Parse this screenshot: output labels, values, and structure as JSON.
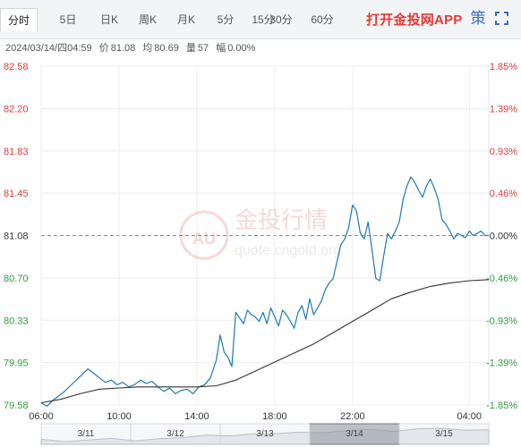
{
  "tabs": [
    {
      "label": "分时",
      "active": true
    },
    {
      "label": "5日",
      "active": false
    },
    {
      "label": "日K",
      "active": false
    },
    {
      "label": "周K",
      "active": false
    },
    {
      "label": "月K",
      "active": false
    },
    {
      "label": "5分",
      "active": false
    },
    {
      "label": "15分",
      "active": false
    },
    {
      "label": "30分",
      "active": false
    },
    {
      "label": "60分",
      "active": false
    }
  ],
  "app_link": "打开金投网APP",
  "icons": {
    "settings": "gear-icon",
    "fullscreen": "fullscreen-icon"
  },
  "quote": {
    "datetime": "2024/03/14/四04:59",
    "price_label": "价",
    "price": "81.08",
    "avg_label": "均",
    "avg": "80.69",
    "volume_label": "量",
    "volume": "57",
    "change_label": "幅",
    "change": "0.00%"
  },
  "watermark": {
    "brand": "金投行情",
    "badge": "AU",
    "url": "quote.cngold.org"
  },
  "colors": {
    "up": "#e53935",
    "down": "#2e9b3f",
    "line": "#1f78b4",
    "avg": "#333333",
    "neutral": "#333333"
  },
  "chart_data": {
    "type": "line",
    "title": "",
    "prev_close": 81.08,
    "ylim": [
      79.58,
      82.58
    ],
    "y_ticks": [
      "82.58",
      "82.20",
      "81.83",
      "81.45",
      "81.08",
      "80.70",
      "80.33",
      "79.95",
      "79.58"
    ],
    "y_pct_ticks": [
      "1.85%",
      "1.39%",
      "0.93%",
      "0.46%",
      "0.00%",
      "-0.46%",
      "-0.93%",
      "-1.39%",
      "-1.85%"
    ],
    "x_ticks": [
      "06:00",
      "10:00",
      "14:00",
      "18:00",
      "22:00",
      "04:00"
    ],
    "x_hours": [
      0,
      4,
      8,
      12,
      16,
      22
    ],
    "xlim_hours": [
      0,
      23
    ],
    "series": [
      {
        "key": "price",
        "x_hours": [
          0,
          0.3,
          0.6,
          0.9,
          1.2,
          1.5,
          1.8,
          2.1,
          2.4,
          2.7,
          3.0,
          3.3,
          3.6,
          3.9,
          4.2,
          4.5,
          4.8,
          5.1,
          5.4,
          5.7,
          6.0,
          6.3,
          6.6,
          6.9,
          7.2,
          7.5,
          7.8,
          8.1,
          8.4,
          8.7,
          9.0,
          9.2,
          9.4,
          9.6,
          9.8,
          10.0,
          10.2,
          10.4,
          10.6,
          10.8,
          11.0,
          11.2,
          11.4,
          11.6,
          11.8,
          12.0,
          12.2,
          12.4,
          12.6,
          12.8,
          13.0,
          13.2,
          13.4,
          13.6,
          13.8,
          14.0,
          14.2,
          14.4,
          14.6,
          14.8,
          15.0,
          15.2,
          15.4,
          15.6,
          15.8,
          16.0,
          16.2,
          16.4,
          16.6,
          16.8,
          17.0,
          17.2,
          17.4,
          17.6,
          17.8,
          18.0,
          18.2,
          18.4,
          18.6,
          18.8,
          19.0,
          19.2,
          19.4,
          19.6,
          19.8,
          20.0,
          20.2,
          20.4,
          20.6,
          20.8,
          21.0,
          21.2,
          21.4,
          21.6,
          21.8,
          22.0,
          22.2,
          22.4,
          22.6,
          22.8,
          23.0
        ],
        "values": [
          79.6,
          79.57,
          79.62,
          79.66,
          79.7,
          79.75,
          79.8,
          79.85,
          79.9,
          79.86,
          79.82,
          79.78,
          79.8,
          79.76,
          79.78,
          79.74,
          79.76,
          79.8,
          79.77,
          79.79,
          79.74,
          79.7,
          79.73,
          79.68,
          79.71,
          79.72,
          79.68,
          79.74,
          79.76,
          79.82,
          79.98,
          80.2,
          80.05,
          80.0,
          79.92,
          80.4,
          80.35,
          80.3,
          80.42,
          80.38,
          80.36,
          80.32,
          80.4,
          80.3,
          80.44,
          80.36,
          80.28,
          80.42,
          80.38,
          80.32,
          80.26,
          80.4,
          80.46,
          80.34,
          80.52,
          80.38,
          80.44,
          80.5,
          80.6,
          80.66,
          80.7,
          80.85,
          81.0,
          81.05,
          81.15,
          81.35,
          81.3,
          81.1,
          81.05,
          81.2,
          80.95,
          80.7,
          80.68,
          80.9,
          81.1,
          81.05,
          81.12,
          81.2,
          81.4,
          81.52,
          81.6,
          81.55,
          81.48,
          81.42,
          81.52,
          81.58,
          81.5,
          81.4,
          81.22,
          81.18,
          81.12,
          81.05,
          81.1,
          81.08,
          81.06,
          81.12,
          81.08,
          81.1,
          81.12,
          81.08,
          81.08
        ]
      },
      {
        "key": "average",
        "x_hours": [
          0,
          1,
          2,
          3,
          4,
          5,
          6,
          7,
          8,
          9,
          10,
          11,
          12,
          13,
          14,
          15,
          16,
          17,
          18,
          19,
          20,
          21,
          22,
          23
        ],
        "values": [
          79.6,
          79.63,
          79.68,
          79.72,
          79.73,
          79.74,
          79.74,
          79.74,
          79.74,
          79.75,
          79.8,
          79.88,
          79.96,
          80.04,
          80.12,
          80.22,
          80.32,
          80.42,
          80.52,
          80.58,
          80.63,
          80.66,
          80.68,
          80.69
        ]
      }
    ]
  },
  "navigator": {
    "labels": [
      "3/11",
      "3/12",
      "3/13",
      "3/14",
      "3/15"
    ],
    "selected_index": 3,
    "series": [
      79.9,
      79.6,
      79.8,
      80.0,
      79.7,
      79.95,
      80.1,
      80.4,
      80.3,
      80.55,
      80.6,
      80.75,
      80.7,
      80.95,
      81.1,
      80.85,
      81.2,
      81.25,
      81.0,
      81.05
    ]
  }
}
